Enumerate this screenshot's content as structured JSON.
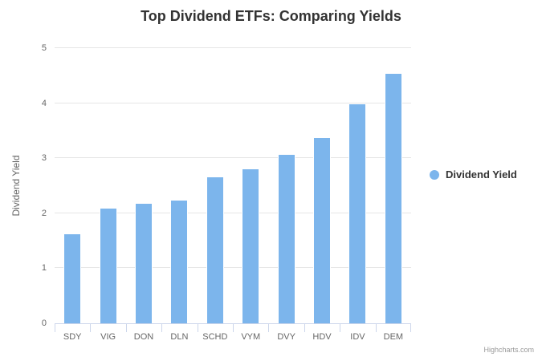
{
  "title": "Top Dividend ETFs: Comparing Yields",
  "legend": {
    "label": "Dividend Yield"
  },
  "credits": "Highcharts.com",
  "colors": {
    "bar": "#7cb5ec",
    "bar_border": "#ffffff",
    "grid": "#e6e6e6",
    "axis_line": "#ccd6eb",
    "title_text": "#333333",
    "axis_label_text": "#666666",
    "legend_text": "#333333",
    "credits_text": "#999999",
    "background": "#ffffff"
  },
  "chart_data": {
    "type": "bar",
    "title": "Top Dividend ETFs: Comparing Yields",
    "categories": [
      "SDY",
      "VIG",
      "DON",
      "DLN",
      "SCHD",
      "VYM",
      "DVY",
      "HDV",
      "IDV",
      "DEM"
    ],
    "series": [
      {
        "name": "Dividend Yield",
        "values": [
          1.63,
          2.1,
          2.18,
          2.24,
          2.67,
          2.82,
          3.07,
          3.38,
          4.0,
          4.55
        ]
      }
    ],
    "xlabel": "",
    "ylabel": "Dividend Yield",
    "ylim": [
      0,
      5
    ],
    "yticks": [
      0,
      1,
      2,
      3,
      4,
      5
    ],
    "grid": true,
    "legend_position": "right"
  }
}
